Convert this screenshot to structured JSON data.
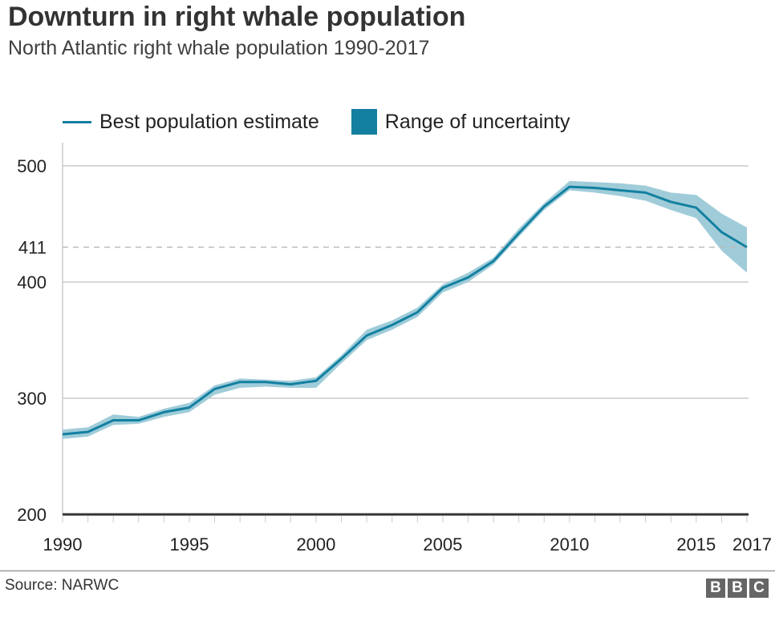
{
  "title": "Downturn in right whale population",
  "subtitle": "North Atlantic right whale population 1990-2017",
  "source": "Source: NARWC",
  "logo": "BBC",
  "chart_data": {
    "type": "area",
    "legend": {
      "line_label": "Best population estimate",
      "band_label": "Range of uncertainty",
      "placement": "top-left"
    },
    "x": [
      1990,
      1991,
      1992,
      1993,
      1994,
      1995,
      1996,
      1997,
      1998,
      1999,
      2000,
      2001,
      2002,
      2003,
      2004,
      2005,
      2006,
      2007,
      2008,
      2009,
      2010,
      2011,
      2012,
      2013,
      2014,
      2015,
      2016,
      2017
    ],
    "series": [
      {
        "name": "Best population estimate",
        "values": [
          269,
          271,
          281,
          281,
          288,
          292,
          308,
          314,
          314,
          312,
          315,
          334,
          354,
          363,
          374,
          395,
          404,
          418,
          442,
          465,
          482,
          481,
          479,
          477,
          469,
          464,
          443,
          430
        ]
      },
      {
        "name": "Range of uncertainty",
        "lower": [
          265,
          267,
          277,
          278,
          284,
          288,
          303,
          309,
          310,
          309,
          309,
          330,
          350,
          359,
          370,
          391,
          400,
          415,
          439,
          462,
          479,
          477,
          474,
          470,
          462,
          455,
          427,
          408
        ],
        "upper": [
          273,
          275,
          286,
          284,
          291,
          296,
          311,
          317,
          316,
          315,
          318,
          337,
          359,
          367,
          378,
          398,
          408,
          421,
          446,
          468,
          487,
          486,
          485,
          483,
          477,
          475,
          459,
          447
        ]
      }
    ],
    "xticks": [
      "1990",
      "1995",
      "2000",
      "2005",
      "2010",
      "2015",
      "2017"
    ],
    "yticks": [
      "200",
      "300",
      "400",
      "500"
    ],
    "reference_line": {
      "label": "411",
      "style": "dashed"
    },
    "ylim": [
      200,
      500
    ],
    "xlim": [
      1990,
      2017
    ],
    "grid": true,
    "colors": {
      "line": "#1380a1",
      "band": "#a0ccd9",
      "grid": "#cccccc",
      "axis": "#333333"
    }
  }
}
